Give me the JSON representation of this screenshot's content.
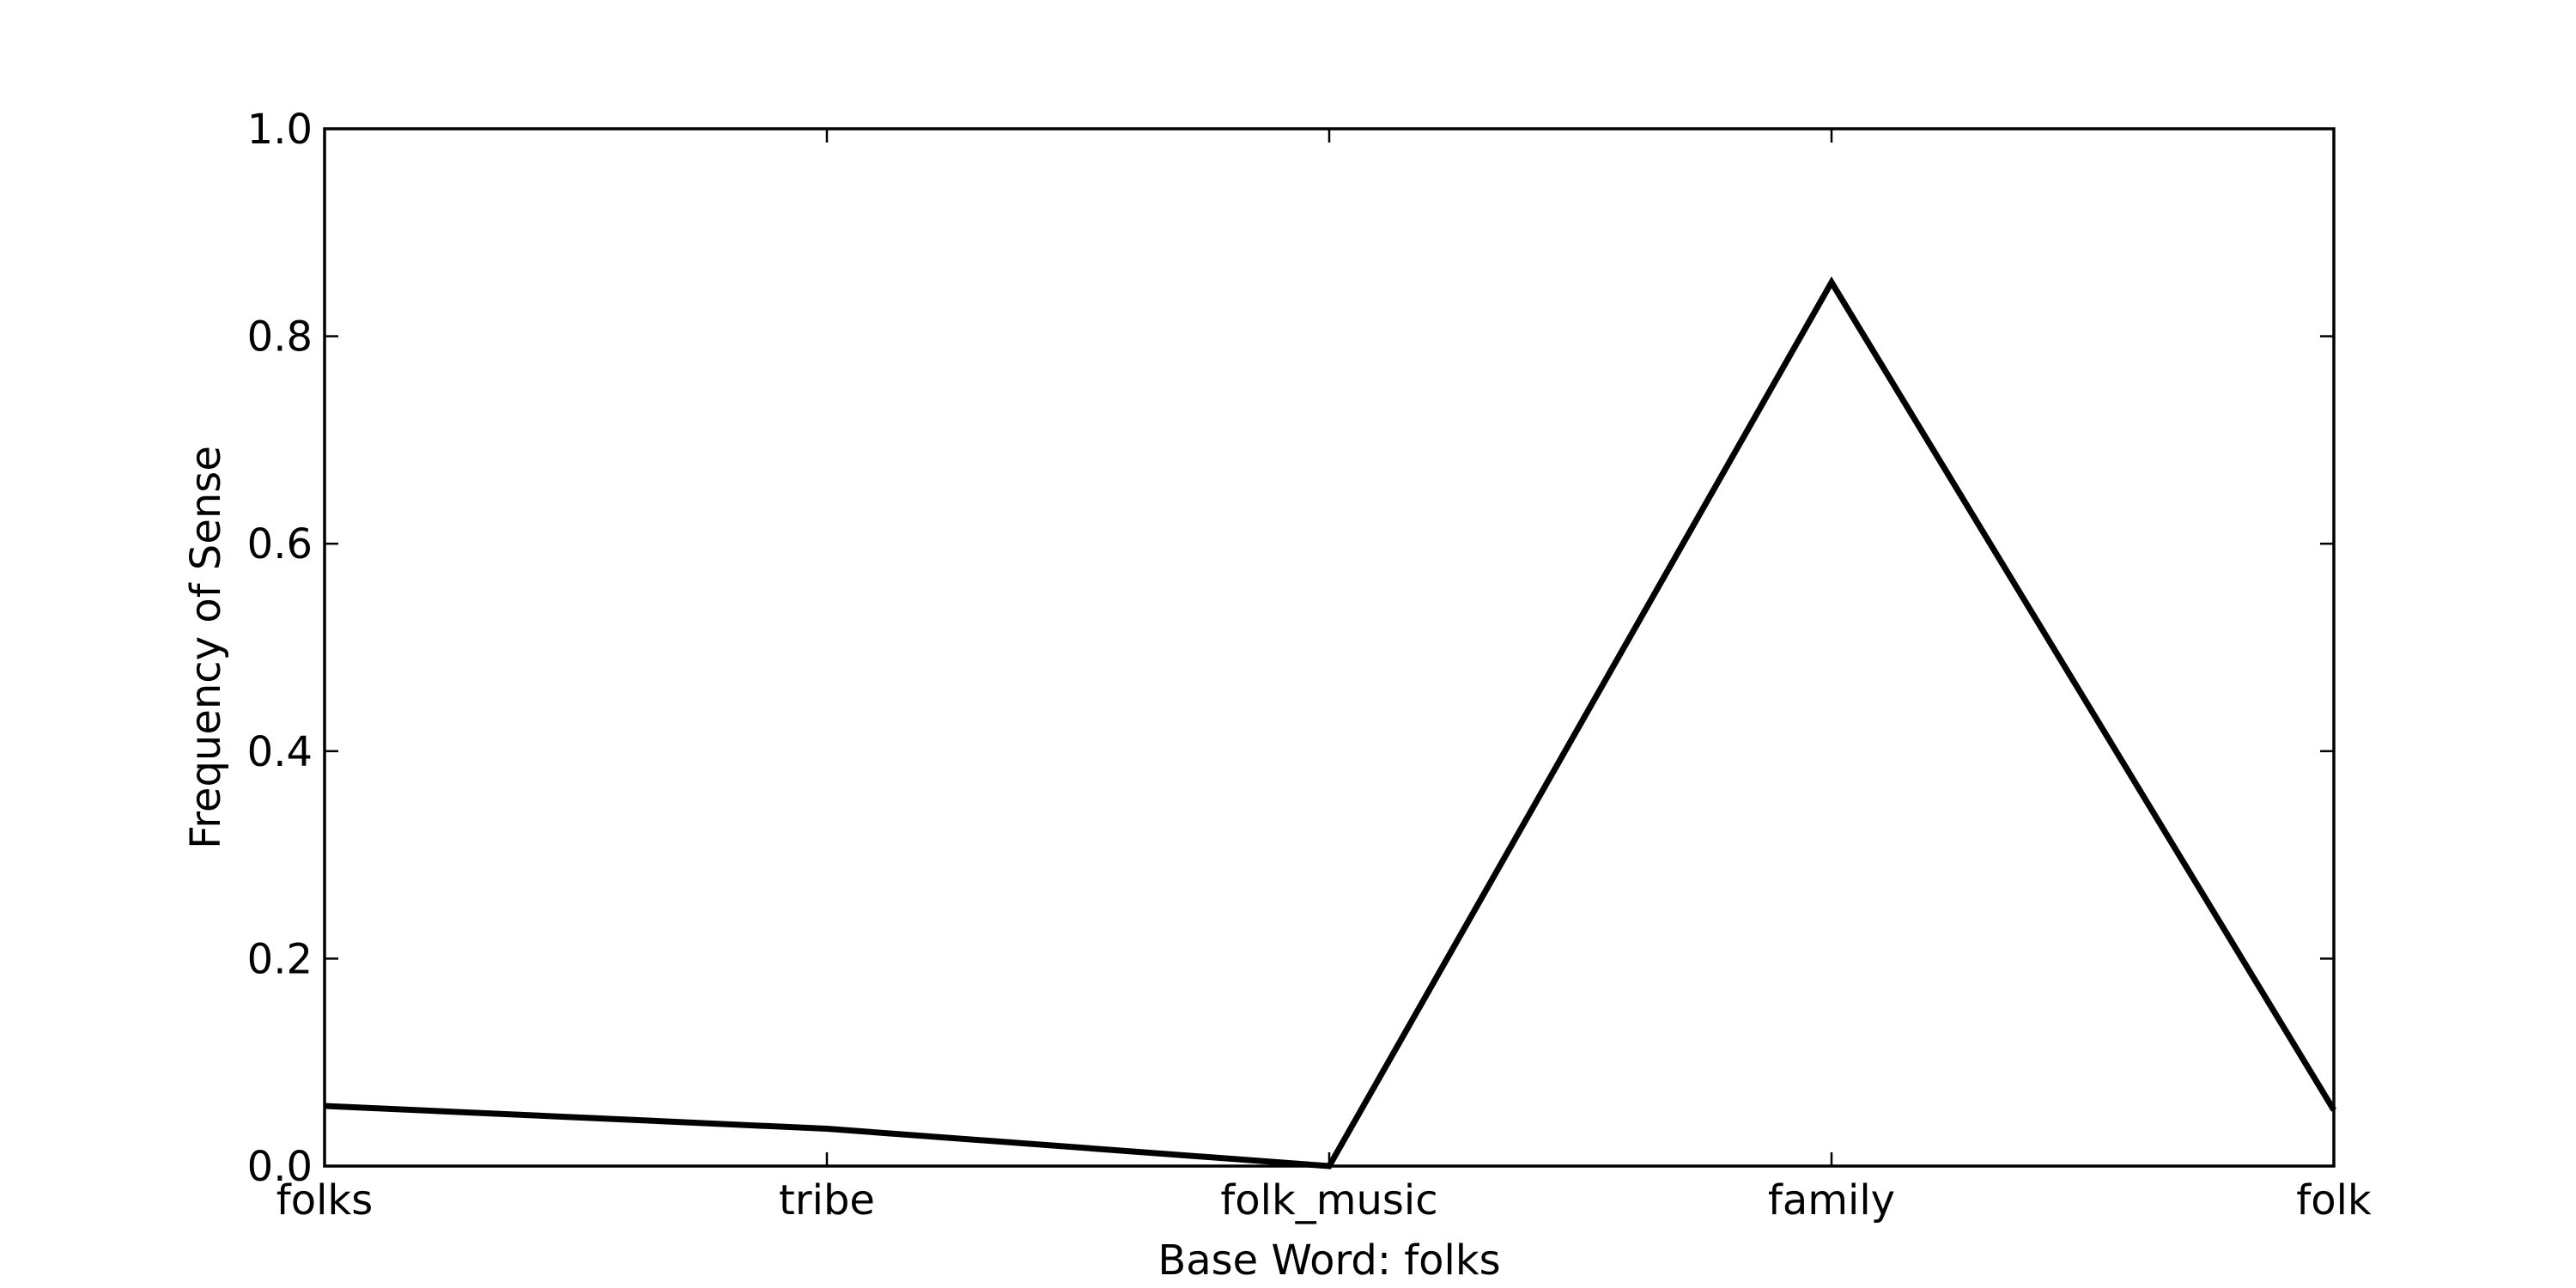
{
  "chart_data": {
    "type": "line",
    "title": "",
    "xlabel": "Base Word: folks",
    "ylabel": "Frequency of Sense",
    "categories": [
      "folks",
      "tribe",
      "folk_music",
      "family",
      "folk"
    ],
    "series": [
      {
        "values": [
          0.058,
          0.036,
          0.0,
          0.852,
          0.054
        ],
        "color": "#000000"
      }
    ],
    "ylim": [
      0.0,
      1.0
    ],
    "yticks": [
      0.0,
      0.2,
      0.4,
      0.6,
      0.8,
      1.0
    ],
    "ytick_labels": [
      "0.0",
      "0.2",
      "0.4",
      "0.6",
      "0.8",
      "1.0"
    ],
    "grid": false,
    "legend": "none"
  }
}
